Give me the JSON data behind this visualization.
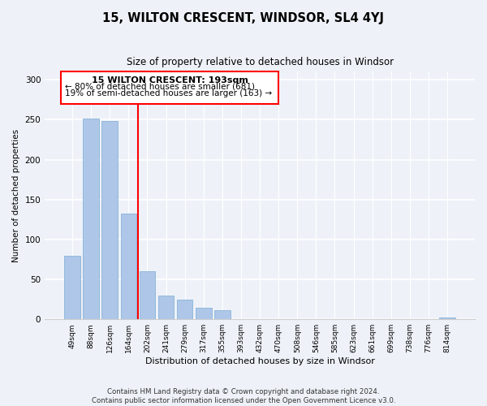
{
  "title": "15, WILTON CRESCENT, WINDSOR, SL4 4YJ",
  "subtitle": "Size of property relative to detached houses in Windsor",
  "xlabel": "Distribution of detached houses by size in Windsor",
  "ylabel": "Number of detached properties",
  "categories": [
    "49sqm",
    "88sqm",
    "126sqm",
    "164sqm",
    "202sqm",
    "241sqm",
    "279sqm",
    "317sqm",
    "355sqm",
    "393sqm",
    "432sqm",
    "470sqm",
    "508sqm",
    "546sqm",
    "585sqm",
    "623sqm",
    "661sqm",
    "699sqm",
    "738sqm",
    "776sqm",
    "814sqm"
  ],
  "values": [
    80,
    251,
    248,
    132,
    60,
    30,
    25,
    14,
    11,
    0,
    0,
    0,
    0,
    0,
    0,
    0,
    0,
    0,
    0,
    0,
    2
  ],
  "bar_color": "#aec6e8",
  "bar_edgecolor": "#7badd4",
  "redline_index": 3.5,
  "annotation_title": "15 WILTON CRESCENT: 193sqm",
  "annotation_line1": "← 80% of detached houses are smaller (681)",
  "annotation_line2": "19% of semi-detached houses are larger (163) →",
  "ylim": [
    0,
    310
  ],
  "yticks": [
    0,
    50,
    100,
    150,
    200,
    250,
    300
  ],
  "footer_line1": "Contains HM Land Registry data © Crown copyright and database right 2024.",
  "footer_line2": "Contains public sector information licensed under the Open Government Licence v3.0.",
  "background_color": "#eef2f8"
}
